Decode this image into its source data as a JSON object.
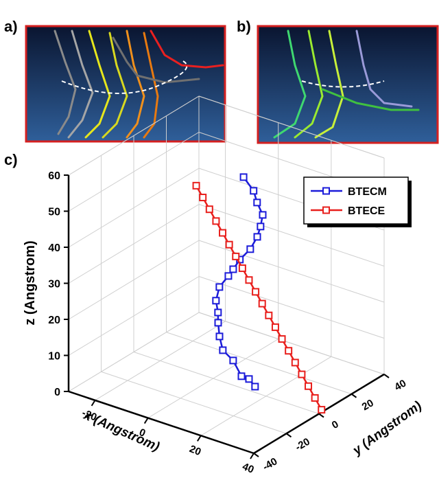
{
  "panels": [
    {
      "label": "a)"
    },
    {
      "label": "b)"
    }
  ],
  "chart_data": {
    "type": "line3d",
    "label": "c)",
    "xlabel": "x (Angstrom)",
    "ylabel": "y (Angstrom)",
    "zlabel": "z (Angstrom)",
    "xlim": [
      -30,
      40
    ],
    "ylim": [
      -40,
      40
    ],
    "zlim": [
      0,
      60
    ],
    "xticks": [
      -20,
      0,
      20,
      40
    ],
    "yticks": [
      -40,
      -20,
      0,
      20,
      40
    ],
    "zticks": [
      0,
      10,
      20,
      30,
      40,
      50,
      60
    ],
    "grid": true,
    "marker": "square",
    "legend": "upper right",
    "series": [
      {
        "name": "BTECM",
        "color": "#1b1bd9",
        "x": [
          12,
          15.6,
          16.8,
          18.8,
          18.6,
          17.6,
          16.5,
          13.8,
          11.7,
          8.9,
          6.8,
          7.1,
          8,
          7.8,
          9.3,
          11.3,
          13.6,
          17.6,
          16.2,
          16.4
        ],
        "y": [
          -0.8,
          -0.5,
          -0.3,
          -0.1,
          -1.1,
          -1.5,
          -4,
          -6,
          -6.7,
          -5.1,
          -7.2,
          -9.8,
          -10,
          -9.6,
          -11.2,
          -12.4,
          -9.8,
          -11.2,
          -4.3,
          -0.9
        ],
        "z": [
          59,
          56,
          53,
          50,
          47,
          44,
          41,
          38,
          35,
          32,
          29,
          26,
          23,
          20,
          17,
          14,
          11,
          8,
          5,
          2
        ]
      },
      {
        "name": "BTECE",
        "color": "#e81f1c",
        "x": [
          1,
          3,
          5,
          7,
          9,
          11,
          13,
          15,
          17,
          19,
          21,
          23,
          25,
          27,
          29,
          31,
          33,
          35,
          37,
          39
        ],
        "y": [
          -12,
          -11.2,
          -10.4,
          -9.6,
          -8.8,
          -8,
          -7.2,
          -6.4,
          -5.6,
          -4.8,
          -4,
          -3.2,
          -2.4,
          -1.6,
          -0.8,
          0,
          0.8,
          1.6,
          2.4,
          3.2
        ],
        "z": [
          57,
          54,
          51,
          48,
          45,
          42,
          39,
          36,
          33,
          30,
          27,
          24,
          21,
          18,
          15,
          12,
          9,
          6,
          3,
          0
        ]
      }
    ]
  }
}
